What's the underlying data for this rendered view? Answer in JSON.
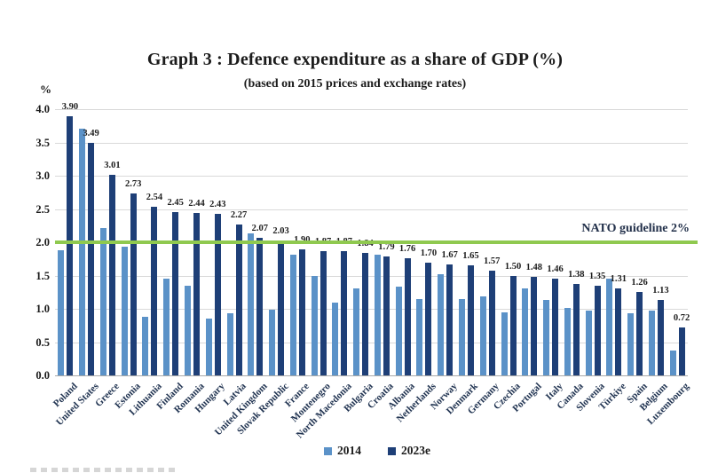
{
  "chart_data": {
    "type": "bar",
    "title": "Graph 3 : Defence expenditure as a share of GDP (%)",
    "subtitle": "(based on 2015 prices and exchange rates)",
    "xlabel": "",
    "ylabel": "%",
    "ylim": [
      0,
      4.0
    ],
    "y_ticks": [
      "4.0",
      "3.5",
      "3.0",
      "2.5",
      "2.0",
      "1.5",
      "1.0",
      "0.5",
      "0.0"
    ],
    "grid": true,
    "legend_position": "bottom",
    "categories": [
      "Poland",
      "United States",
      "Greece",
      "Estonia",
      "Lithuania",
      "Finland",
      "Romania",
      "Hungary",
      "Latvia",
      "United Kingdom",
      "Slovak Republic",
      "France",
      "Montenegro",
      "North Macedonia",
      "Bulgaria",
      "Croatia",
      "Albania",
      "Netherlands",
      "Norway",
      "Denmark",
      "Germany",
      "Czechia",
      "Portugal",
      "Italy",
      "Canada",
      "Slovenia",
      "Türkiye",
      "Spain",
      "Belgium",
      "Luxembourg"
    ],
    "series": [
      {
        "name": "2014",
        "color": "#5b92c8",
        "data_labels": false,
        "values": [
          1.88,
          3.71,
          2.22,
          1.93,
          0.88,
          1.45,
          1.35,
          0.86,
          0.94,
          2.14,
          0.99,
          1.82,
          1.5,
          1.09,
          1.31,
          1.82,
          1.34,
          1.15,
          1.52,
          1.15,
          1.19,
          0.95,
          1.31,
          1.14,
          1.01,
          0.98,
          1.45,
          0.93,
          0.97,
          0.38
        ]
      },
      {
        "name": "2023e",
        "color": "#1e3f77",
        "data_labels": true,
        "values": [
          3.9,
          3.49,
          3.01,
          2.73,
          2.54,
          2.45,
          2.44,
          2.43,
          2.27,
          2.07,
          2.03,
          1.9,
          1.87,
          1.87,
          1.84,
          1.79,
          1.76,
          1.7,
          1.67,
          1.65,
          1.57,
          1.5,
          1.48,
          1.46,
          1.38,
          1.35,
          1.31,
          1.26,
          1.13,
          0.72
        ]
      }
    ],
    "reference_line": {
      "value": 2.0,
      "label": "NATO guideline 2%",
      "color": "#8fc94f"
    },
    "colors": {
      "gridline": "#d9d9d9",
      "axis_line": "#a9a9a9",
      "text": "#1b1b1b",
      "category_text": "#1f3250"
    }
  }
}
